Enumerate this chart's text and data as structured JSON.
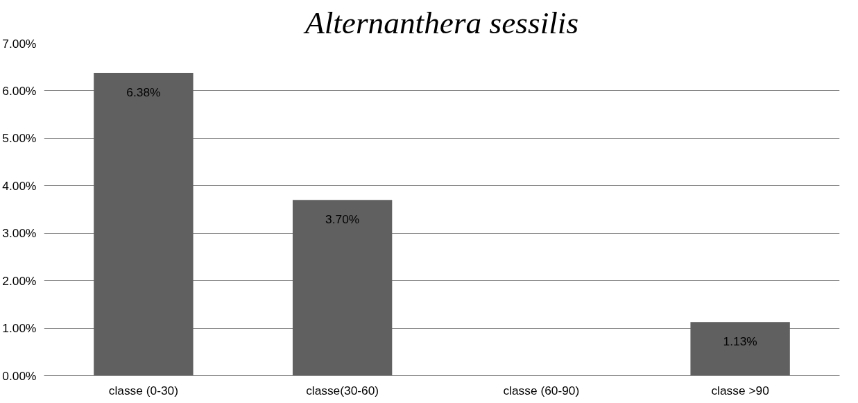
{
  "chart_data": {
    "type": "bar",
    "title": "Alternanthera sessilis",
    "categories": [
      "classe (0-30)",
      "classe(30-60)",
      "classe (60-90)",
      "classe >90"
    ],
    "values": [
      6.38,
      3.7,
      null,
      1.13
    ],
    "value_labels": [
      "6.38%",
      "3.70%",
      null,
      "1.13%"
    ],
    "color": "#606060",
    "ylim": [
      0,
      7
    ],
    "yticks": [
      {
        "value": 0,
        "label": "0.00%"
      },
      {
        "value": 1,
        "label": "1.00%"
      },
      {
        "value": 2,
        "label": "2.00%"
      },
      {
        "value": 3,
        "label": "3.00%"
      },
      {
        "value": 4,
        "label": "4.00%"
      },
      {
        "value": 5,
        "label": "5.00%"
      },
      {
        "value": 6,
        "label": "6.00%"
      },
      {
        "value": 7,
        "label": "7.00%"
      }
    ],
    "grid": "y"
  }
}
